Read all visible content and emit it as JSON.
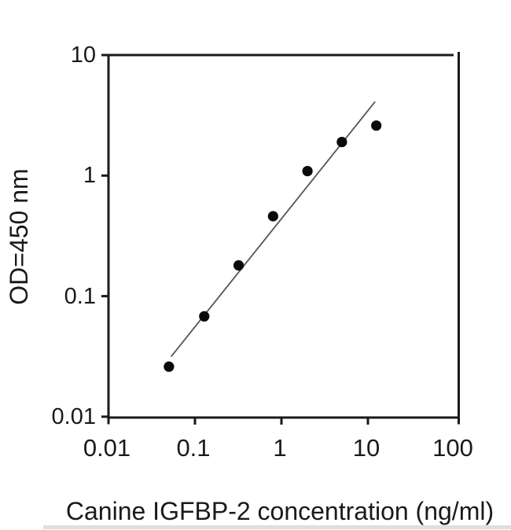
{
  "chart_data": {
    "type": "scatter",
    "title": "",
    "xlabel": "Canine IGFBP-2 concentration (ng/ml)",
    "ylabel": "OD=450 nm",
    "x_scale": "log",
    "y_scale": "log",
    "xlim": [
      0.01,
      100
    ],
    "ylim": [
      0.01,
      10
    ],
    "grid": false,
    "legend": "none",
    "x_ticks": [
      {
        "value": 0.01,
        "label": "0.01"
      },
      {
        "value": 0.1,
        "label": "0.1"
      },
      {
        "value": 1,
        "label": "1"
      },
      {
        "value": 10,
        "label": "10"
      },
      {
        "value": 100,
        "label": "100"
      }
    ],
    "y_ticks": [
      {
        "value": 10,
        "label": "10"
      },
      {
        "value": 1,
        "label": "1"
      },
      {
        "value": 0.1,
        "label": "0.1"
      },
      {
        "value": 0.01,
        "label": "0.01"
      }
    ],
    "series": [
      {
        "name": "fit-line",
        "type": "line",
        "color": "#555555",
        "points": [
          {
            "x": 0.053,
            "y": 0.0315
          },
          {
            "x": 12.1,
            "y": 4.1
          }
        ]
      },
      {
        "name": "standard-points",
        "type": "scatter",
        "marker": "filled-circle",
        "color": "#0a0a0a",
        "points": [
          {
            "x": 0.05,
            "y": 0.026
          },
          {
            "x": 0.128,
            "y": 0.068
          },
          {
            "x": 0.32,
            "y": 0.18
          },
          {
            "x": 0.8,
            "y": 0.46
          },
          {
            "x": 2,
            "y": 1.09
          },
          {
            "x": 5,
            "y": 1.9
          },
          {
            "x": 12.5,
            "y": 2.6
          }
        ]
      }
    ]
  },
  "colors": {
    "background": "#ffffff",
    "axis": "#1a1a1a",
    "text": "#1a1a1a",
    "marker": "#0a0a0a",
    "fit_line": "#555555",
    "bottom_artifact": "#d9d9d9"
  }
}
